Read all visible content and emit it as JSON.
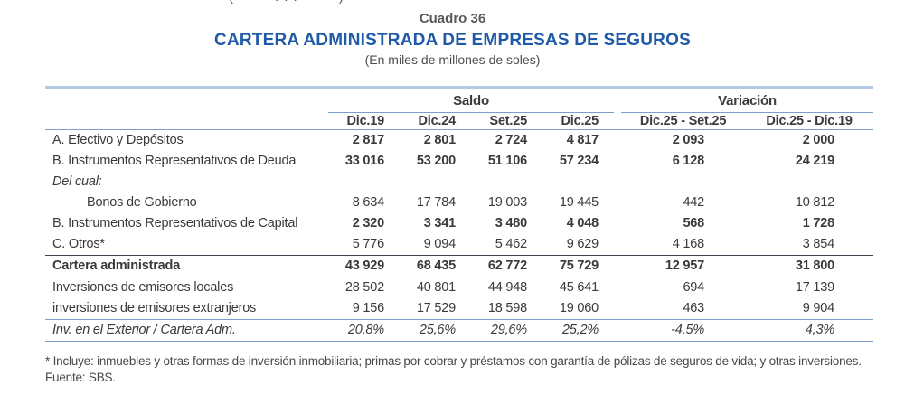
{
  "page": {
    "clipped_top_fragment": "( ... )"
  },
  "header": {
    "table_number": "Cuadro 36",
    "title": "CARTERA ADMINISTRADA DE EMPRESAS DE SEGUROS",
    "subtitle": "(En miles de millones de soles)"
  },
  "table": {
    "col_groups": [
      {
        "label": "Saldo",
        "span": 4
      },
      {
        "label": "Variación",
        "span": 2
      }
    ],
    "columns": [
      "Dic.19",
      "Dic.24",
      "Set.25",
      "Dic.25",
      "Dic.25 - Set.25",
      "Dic.25 - Dic.19"
    ],
    "rows": [
      {
        "label": "A. Efectivo y Depósitos",
        "row_type": "value-bold",
        "values": [
          "2 817",
          "2 801",
          "2 724",
          "4 817",
          "2 093",
          "2 000"
        ]
      },
      {
        "label": "B. Instrumentos Representativos de Deuda",
        "row_type": "value-bold",
        "values": [
          "33 016",
          "53 200",
          "51 106",
          "57 234",
          "6 128",
          "24 219"
        ]
      },
      {
        "label": "Del cual:",
        "row_type": "section-note",
        "values": [
          "",
          "",
          "",
          "",
          "",
          ""
        ]
      },
      {
        "label": "Bonos de Gobierno",
        "row_type": "indented",
        "values": [
          "8 634",
          "17 784",
          "19 003",
          "19 445",
          "442",
          "10 812"
        ]
      },
      {
        "label": "B. Instrumentos Representativos de Capital",
        "row_type": "value-bold",
        "values": [
          "2 320",
          "3 341",
          "3 480",
          "4 048",
          "568",
          "1 728"
        ]
      },
      {
        "label": "C. Otros*",
        "row_type": "plain",
        "values": [
          "5 776",
          "9 094",
          "5 462",
          "9 629",
          "4 168",
          "3 854"
        ]
      },
      {
        "label": "Cartera administrada",
        "row_type": "total",
        "values": [
          "43 929",
          "68 435",
          "62 772",
          "75 729",
          "12 957",
          "31 800"
        ]
      },
      {
        "label": "Inversiones de emisores locales",
        "row_type": "plain",
        "values": [
          "28 502",
          "40 801",
          "44 948",
          "45 641",
          "694",
          "17 139"
        ]
      },
      {
        "label": "inversiones de emisores extranjeros",
        "row_type": "plain-rule",
        "values": [
          "9 156",
          "17 529",
          "18 598",
          "19 060",
          "463",
          "9 904"
        ]
      },
      {
        "label": "Inv. en el Exterior / Cartera Adm.",
        "row_type": "ratio",
        "values": [
          "20,8%",
          "25,6%",
          "29,6%",
          "25,2%",
          "-4,5%",
          "4,3%"
        ]
      }
    ]
  },
  "footnotes": {
    "note": "* Incluye: inmuebles y otras formas de inversión inmobiliaria; primas por cobrar y préstamos con garantía de pólizas de seguros de vida; y otras inversiones.",
    "source": "Fuente: SBS."
  },
  "colors": {
    "title_blue": "#1e5aa8",
    "table_number_gray": "#58595b",
    "body_text": "#3a3a3c",
    "rule_light_blue": "#b5c8e6",
    "rule_steel_blue": "#7e9dc9",
    "rule_dark": "#3e4450"
  }
}
